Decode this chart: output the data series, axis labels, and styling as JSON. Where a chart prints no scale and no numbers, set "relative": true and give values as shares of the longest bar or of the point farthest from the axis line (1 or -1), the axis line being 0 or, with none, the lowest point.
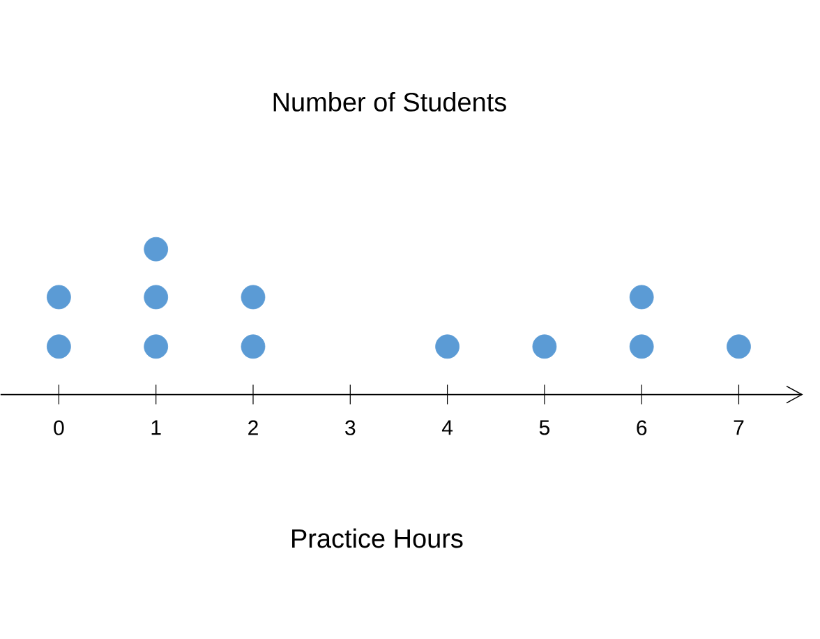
{
  "chart_data": {
    "type": "scatter",
    "title": "Number of Students",
    "xlabel": "Practice Hours",
    "relative": true,
    "x": [
      0,
      0,
      1,
      1,
      1,
      2,
      2,
      4,
      5,
      6,
      6,
      7
    ],
    "values": [
      0.33,
      0.67,
      0.33,
      0.67,
      1,
      0.33,
      0.67,
      0.33,
      0.33,
      0.33,
      0.67,
      0.33
    ],
    "color": "#5b9bd5",
    "xlim": [
      -0.6,
      7.65
    ],
    "xticks": [
      0,
      1,
      2,
      3,
      4,
      5,
      6,
      7
    ],
    "tick_labels": "x"
  }
}
